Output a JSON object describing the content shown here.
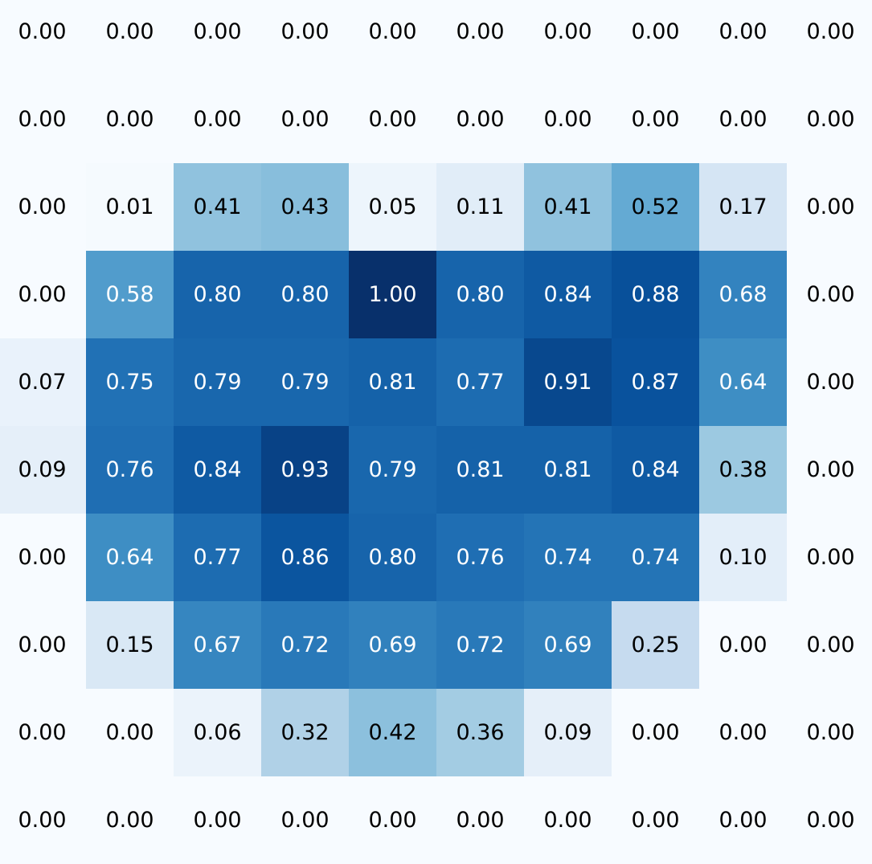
{
  "chart_data": {
    "type": "heatmap",
    "title": "",
    "xlabel": "",
    "ylabel": "",
    "colormap": "Blues",
    "value_range": [
      0,
      1
    ],
    "colorbar": false,
    "annotation_format": "0.00",
    "annotation_text_colors": {
      "on_light": "#000000",
      "on_dark": "#ffffff"
    },
    "rows": 10,
    "cols": 10,
    "values": [
      [
        0.0,
        0.0,
        0.0,
        0.0,
        0.0,
        0.0,
        0.0,
        0.0,
        0.0,
        0.0
      ],
      [
        0.0,
        0.0,
        0.0,
        0.0,
        0.0,
        0.0,
        0.0,
        0.0,
        0.0,
        0.0
      ],
      [
        0.0,
        0.01,
        0.41,
        0.43,
        0.05,
        0.11,
        0.41,
        0.52,
        0.17,
        0.0
      ],
      [
        0.0,
        0.58,
        0.8,
        0.8,
        1.0,
        0.8,
        0.84,
        0.88,
        0.68,
        0.0
      ],
      [
        0.07,
        0.75,
        0.79,
        0.79,
        0.81,
        0.77,
        0.91,
        0.87,
        0.64,
        0.0
      ],
      [
        0.09,
        0.76,
        0.84,
        0.93,
        0.79,
        0.81,
        0.81,
        0.84,
        0.38,
        0.0
      ],
      [
        0.0,
        0.64,
        0.77,
        0.86,
        0.8,
        0.76,
        0.74,
        0.74,
        0.1,
        0.0
      ],
      [
        0.0,
        0.15,
        0.67,
        0.72,
        0.69,
        0.72,
        0.69,
        0.25,
        0.0,
        0.0
      ],
      [
        0.0,
        0.0,
        0.06,
        0.32,
        0.42,
        0.36,
        0.09,
        0.0,
        0.0,
        0.0
      ],
      [
        0.0,
        0.0,
        0.0,
        0.0,
        0.0,
        0.0,
        0.0,
        0.0,
        0.0,
        0.0
      ]
    ]
  }
}
